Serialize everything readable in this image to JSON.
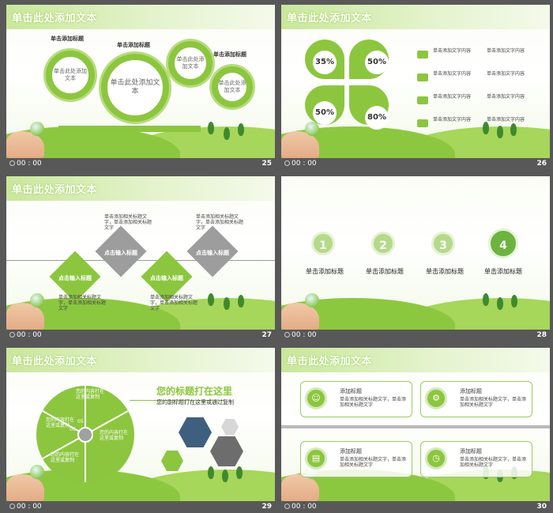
{
  "time_label": "00 : 00",
  "slides": [
    {
      "number": "25",
      "title": "单击此处添加文本",
      "gear_titles": [
        "单击添加标题",
        "单击添加标题",
        "单击添加标题"
      ],
      "gears": [
        "单击此处添加文本",
        "单击此处添加文本",
        "单击此处添加文本",
        "单击此处添加文本"
      ]
    },
    {
      "number": "26",
      "title": "单击此处添加文本",
      "percents": [
        "35%",
        "50%",
        "50%",
        "80%"
      ],
      "list_text": "单击添加文字内容"
    },
    {
      "number": "27",
      "title": "单击此处添加文本",
      "diamonds": [
        "点击输入标题",
        "点击输入标题",
        "点击输入标题",
        "点击输入标题"
      ],
      "desc": "单击添加相关标题文字，单击添加相关标题文字"
    },
    {
      "number": "28",
      "title": "",
      "steps": [
        {
          "n": "1",
          "label": "单击添加标题"
        },
        {
          "n": "2",
          "label": "单击添加标题"
        },
        {
          "n": "3",
          "label": "单击添加标题"
        },
        {
          "n": "4",
          "label": "单击添加标题"
        }
      ]
    },
    {
      "number": "29",
      "title": "单击此处添加文本",
      "headline": "您的标题打在这里",
      "subline": "您的副标题打在这里或通过复制",
      "segments": [
        "您的内容打在这里或复制",
        "您的内容打在这里或复制",
        "您的内容打在这里或复制",
        "您的内容打在这里或复制"
      ],
      "seg_nums": [
        "01",
        "02",
        "03",
        "04",
        "05",
        "06"
      ]
    },
    {
      "number": "30",
      "title": "单击此处添加文本",
      "cards": [
        {
          "title": "添加标题",
          "body": "单击添加相关标题文字，单击添加相关标题文字"
        },
        {
          "title": "添加标题",
          "body": "单击添加相关标题文字，单击添加相关标题文字"
        },
        {
          "title": "添加标题",
          "body": "单击添加相关标题文字，单击添加相关标题文字"
        },
        {
          "title": "添加标题",
          "body": "单击添加相关标题文字，单击添加相关标题文字"
        }
      ]
    }
  ]
}
